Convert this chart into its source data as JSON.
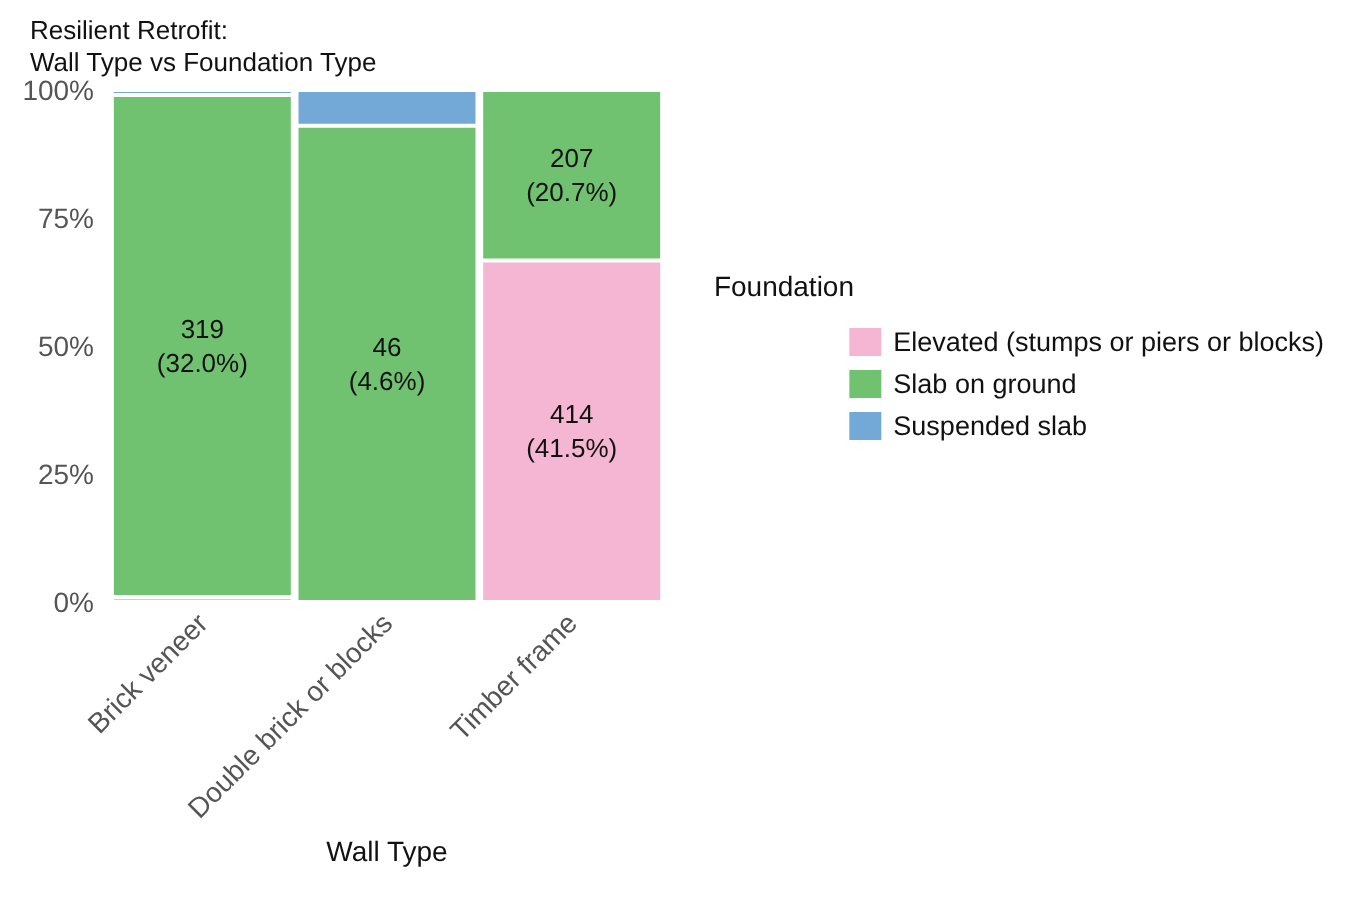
{
  "chart_data": {
    "type": "bar",
    "stacked": true,
    "title": "Resilient Retrofit:\nWall Type vs Foundation Type",
    "xlabel": "Wall Type",
    "legend_title": "Foundation",
    "legend": "right",
    "grid": false,
    "categories": [
      "Brick veneer",
      "Double brick or blocks",
      "Timber frame"
    ],
    "ylim": [
      0,
      100
    ],
    "yticks": [
      {
        "value": 0,
        "label": "0%"
      },
      {
        "value": 25,
        "label": "25%"
      },
      {
        "value": 50,
        "label": "50%"
      },
      {
        "value": 75,
        "label": "75%"
      },
      {
        "value": 100,
        "label": "100%"
      }
    ],
    "series": [
      {
        "name": "Elevated (stumps or piers or blocks)",
        "color": "#f4b6d2",
        "values": [
          1,
          0,
          66.7
        ]
      },
      {
        "name": "Slab on ground",
        "color": "#70c271",
        "values": [
          98,
          93,
          33.3
        ]
      },
      {
        "name": "Suspended slab",
        "color": "#72a9d6",
        "values": [
          1,
          7,
          0
        ]
      }
    ],
    "annotations": [
      "319\n(32.0%)",
      "46\n(4.6%)",
      "207\n(20.7%)",
      "414\n(41.5%)"
    ]
  }
}
